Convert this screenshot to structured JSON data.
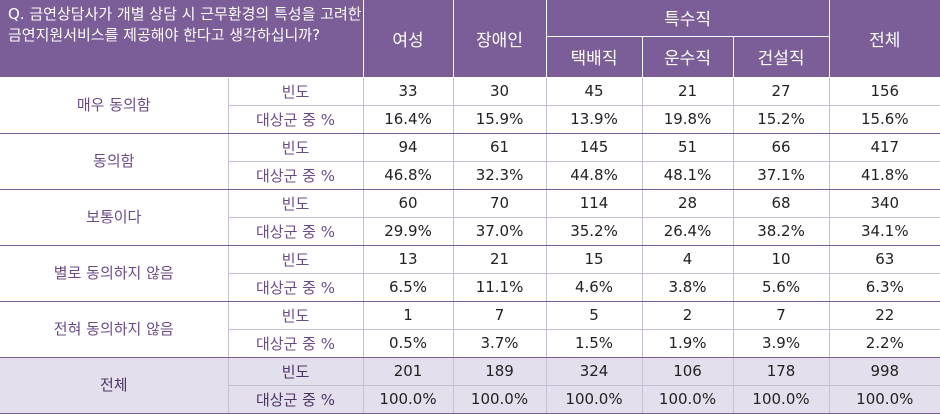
{
  "header": {
    "question": "Q. 금연상담사가 개별 상담 시 근무환경의 특성을 고려한 금연지원서비스를 제공해야 한다고 생각하십니까?",
    "col_female": "여성",
    "col_disabled": "장애인",
    "group_special": "특수직",
    "col_delivery": "택배직",
    "col_transport": "운수직",
    "col_construction": "건설직",
    "col_total": "전체"
  },
  "rows": [
    {
      "category": "매우 동의함",
      "freq_label": "빈도",
      "pct_label": "대상군 중 %",
      "freq": [
        "33",
        "30",
        "45",
        "21",
        "27",
        "156"
      ],
      "pct": [
        "16.4%",
        "15.9%",
        "13.9%",
        "19.8%",
        "15.2%",
        "15.6%"
      ]
    },
    {
      "category": "동의함",
      "freq_label": "빈도",
      "pct_label": "대상군 중 %",
      "freq": [
        "94",
        "61",
        "145",
        "51",
        "66",
        "417"
      ],
      "pct": [
        "46.8%",
        "32.3%",
        "44.8%",
        "48.1%",
        "37.1%",
        "41.8%"
      ]
    },
    {
      "category": "보통이다",
      "freq_label": "빈도",
      "pct_label": "대상군 중 %",
      "freq": [
        "60",
        "70",
        "114",
        "28",
        "68",
        "340"
      ],
      "pct": [
        "29.9%",
        "37.0%",
        "35.2%",
        "26.4%",
        "38.2%",
        "34.1%"
      ]
    },
    {
      "category": "별로 동의하지 않음",
      "freq_label": "빈도",
      "pct_label": "대상군 중 %",
      "freq": [
        "13",
        "21",
        "15",
        "4",
        "10",
        "63"
      ],
      "pct": [
        "6.5%",
        "11.1%",
        "4.6%",
        "3.8%",
        "5.6%",
        "6.3%"
      ]
    },
    {
      "category": "전혀 동의하지 않음",
      "freq_label": "빈도",
      "pct_label": "대상군 중 %",
      "freq": [
        "1",
        "7",
        "5",
        "2",
        "7",
        "22"
      ],
      "pct": [
        "0.5%",
        "3.7%",
        "1.5%",
        "1.9%",
        "3.9%",
        "2.2%"
      ]
    },
    {
      "category": "전체",
      "freq_label": "빈도",
      "pct_label": "대상군 중 %",
      "freq": [
        "201",
        "189",
        "324",
        "106",
        "178",
        "998"
      ],
      "pct": [
        "100.0%",
        "100.0%",
        "100.0%",
        "100.0%",
        "100.0%",
        "100.0%"
      ]
    }
  ]
}
